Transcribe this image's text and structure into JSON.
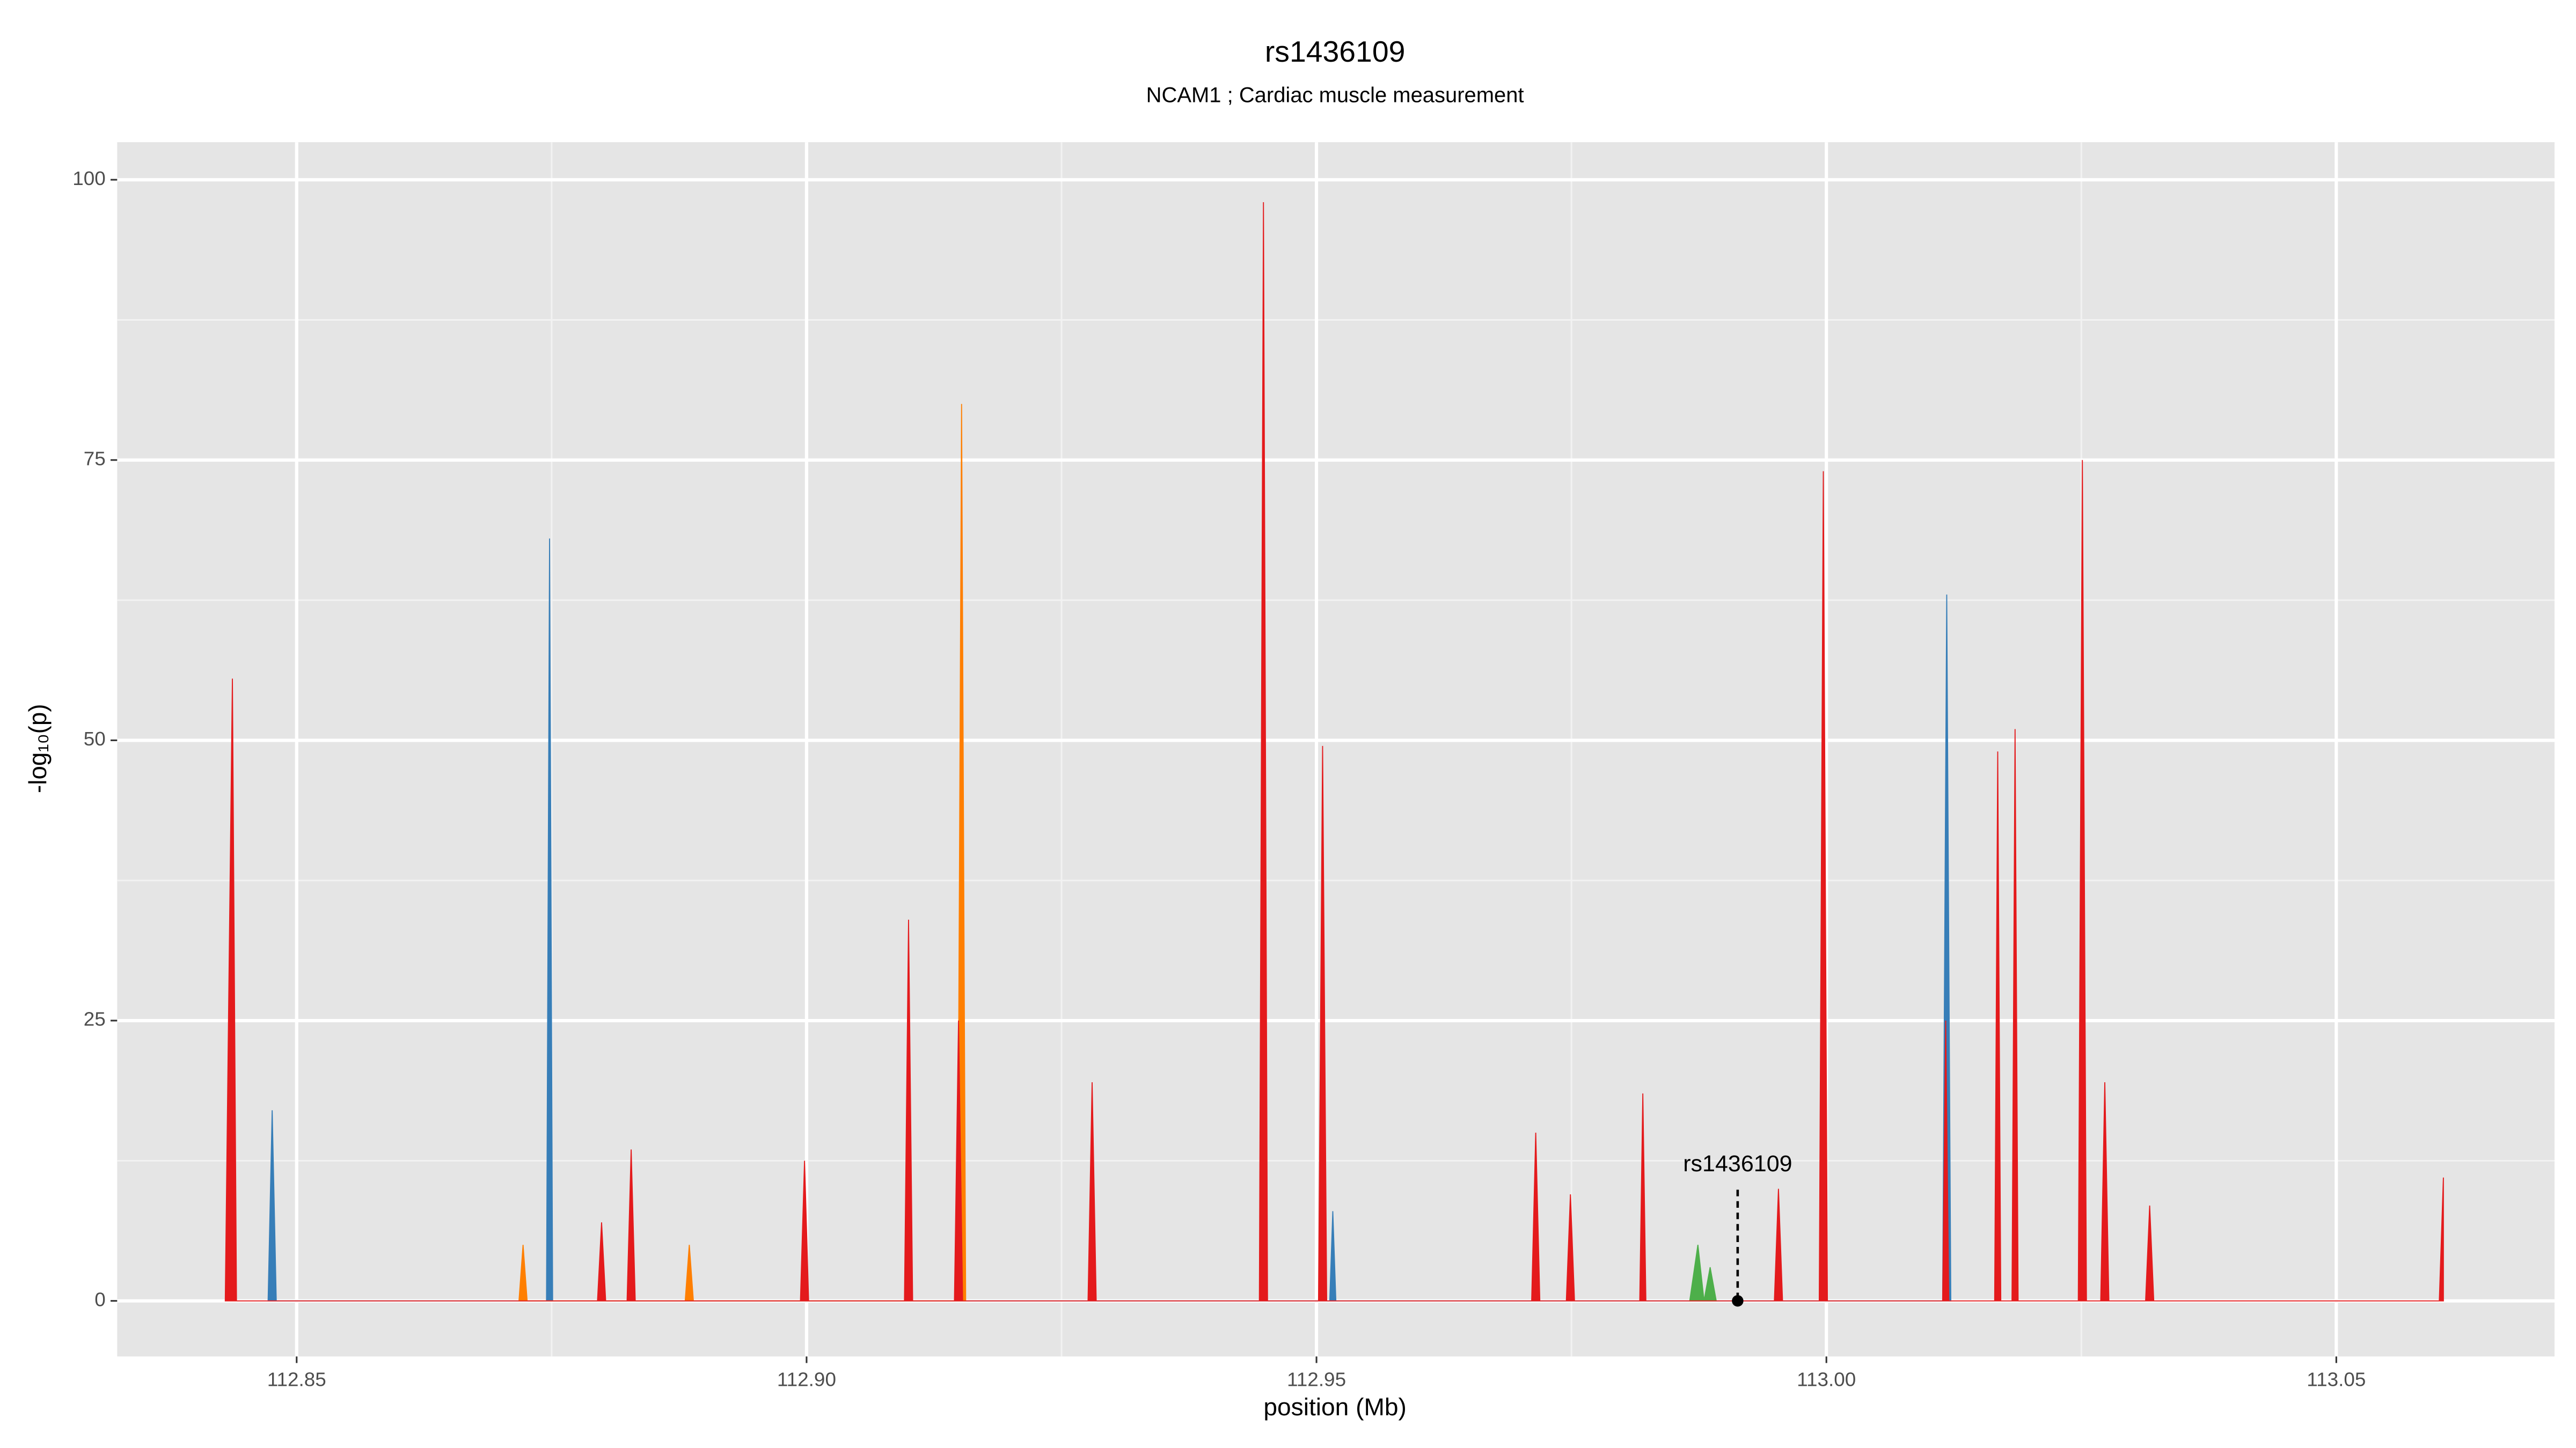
{
  "chart_data": {
    "type": "area",
    "title": "rs1436109",
    "subtitle": "NCAM1 ; Cardiac muscle measurement",
    "x_label": "position (Mb)",
    "y_label": "-log₁₀(p)",
    "xlim": [
      112.8324,
      113.0714
    ],
    "ylim": [
      -4.96,
      103.35
    ],
    "xticks": [
      112.85,
      {
        "value": 112.9,
        "label": "112.90"
      },
      112.95,
      {
        "value": 113,
        "label": "113.00"
      },
      113.05
    ],
    "yticks": [
      0,
      25,
      50,
      75,
      100
    ],
    "grid": true,
    "minor_grid": true,
    "annotation": {
      "text": "rs1436109",
      "x": 112.9913,
      "y": 0
    },
    "series": [
      {
        "color": "#377eb8",
        "x": [
          112.8472,
          112.8476,
          112.848,
          112.8745,
          112.8748,
          112.8751,
          112.9513,
          112.9516,
          112.9519,
          113.0114,
          113.0118,
          113.0122
        ],
        "values": [
          0,
          17,
          0,
          0,
          68,
          0,
          0,
          8,
          0,
          0,
          63,
          0
        ]
      },
      {
        "color": "#ff7f00",
        "x": [
          112.8718,
          112.8722,
          112.8726,
          112.8881,
          112.8885,
          112.8889,
          112.9148,
          112.9152,
          112.9156
        ],
        "values": [
          0,
          5,
          0,
          0,
          5,
          0,
          0,
          80,
          0
        ]
      },
      {
        "color": "#4daf4a",
        "x": [
          112.9866,
          112.9874,
          112.988,
          112.9886,
          112.9892
        ],
        "values": [
          0,
          5,
          0,
          3,
          0
        ]
      },
      {
        "color": "#e41a1c",
        "x": [
          112.843,
          112.8437,
          112.8441,
          112.8795,
          112.8799,
          112.8803,
          112.8824,
          112.8828,
          112.8832,
          112.8994,
          112.8998,
          112.9002,
          112.9096,
          112.91,
          112.9104,
          112.9145,
          112.9149,
          112.9153,
          112.9276,
          112.928,
          112.9284,
          112.9444,
          112.9448,
          112.9452,
          112.9502,
          112.9506,
          112.951,
          112.9711,
          112.9715,
          112.9719,
          112.9745,
          112.9749,
          112.9753,
          112.9817,
          112.982,
          112.9823,
          112.9949,
          112.9953,
          112.9957,
          112.9993,
          112.9997,
          113.0001,
          113.0114,
          113.0117,
          113.012,
          113.0165,
          113.0168,
          113.0171,
          113.0182,
          113.0185,
          113.0188,
          113.0247,
          113.0251,
          113.0255,
          113.0269,
          113.0273,
          113.0277,
          113.0313,
          113.0317,
          113.0321,
          113.0601,
          113.0605
        ],
        "values": [
          0,
          55.5,
          0,
          0,
          7,
          0,
          0,
          13.5,
          0,
          0,
          12.5,
          0,
          0,
          34,
          0,
          0,
          25,
          0,
          0,
          19.5,
          0,
          0,
          98,
          0,
          0,
          49.5,
          0,
          0,
          15,
          0,
          0,
          9.5,
          0,
          0,
          18.5,
          0,
          0,
          10,
          0,
          0,
          74,
          0,
          0,
          25,
          0,
          0,
          49,
          0,
          0,
          51,
          0,
          0,
          75,
          0,
          0,
          19.5,
          0,
          0,
          8.5,
          0,
          0,
          11
        ]
      }
    ]
  }
}
